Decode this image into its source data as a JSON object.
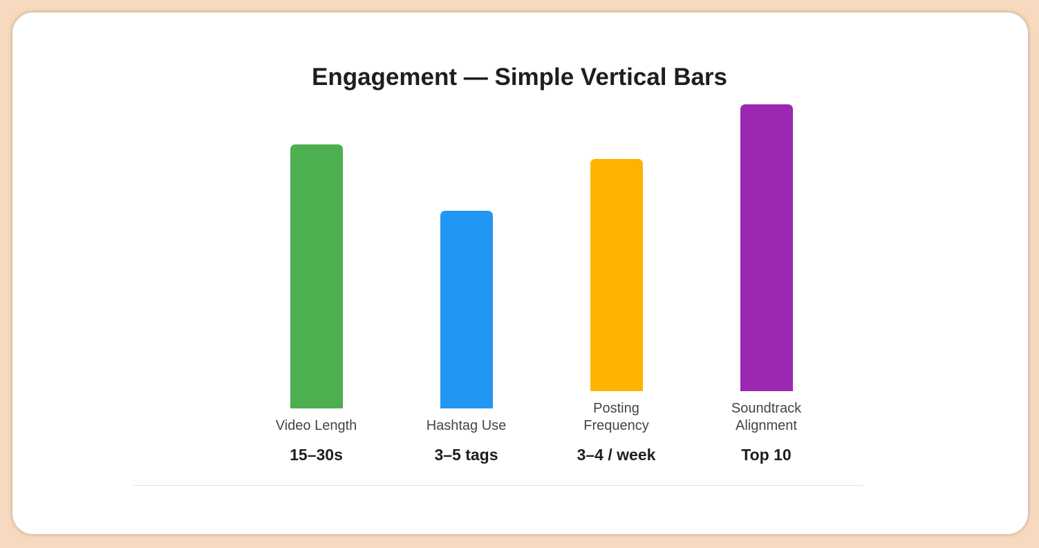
{
  "chart_data": {
    "type": "bar",
    "title": "Engagement — Simple Vertical Bars",
    "categories": [
      "Video Length",
      "Hashtag Use",
      "Posting Frequency",
      "Soundtrack Alignment"
    ],
    "values": [
      92,
      69,
      81,
      100
    ],
    "annotations": [
      "15–30s",
      "3–5 tags",
      "3–4 / week",
      "Top 10"
    ],
    "colors": [
      "#4caf50",
      "#2196f3",
      "#ffb300",
      "#9c27b0"
    ],
    "ylim": [
      0,
      100
    ]
  }
}
